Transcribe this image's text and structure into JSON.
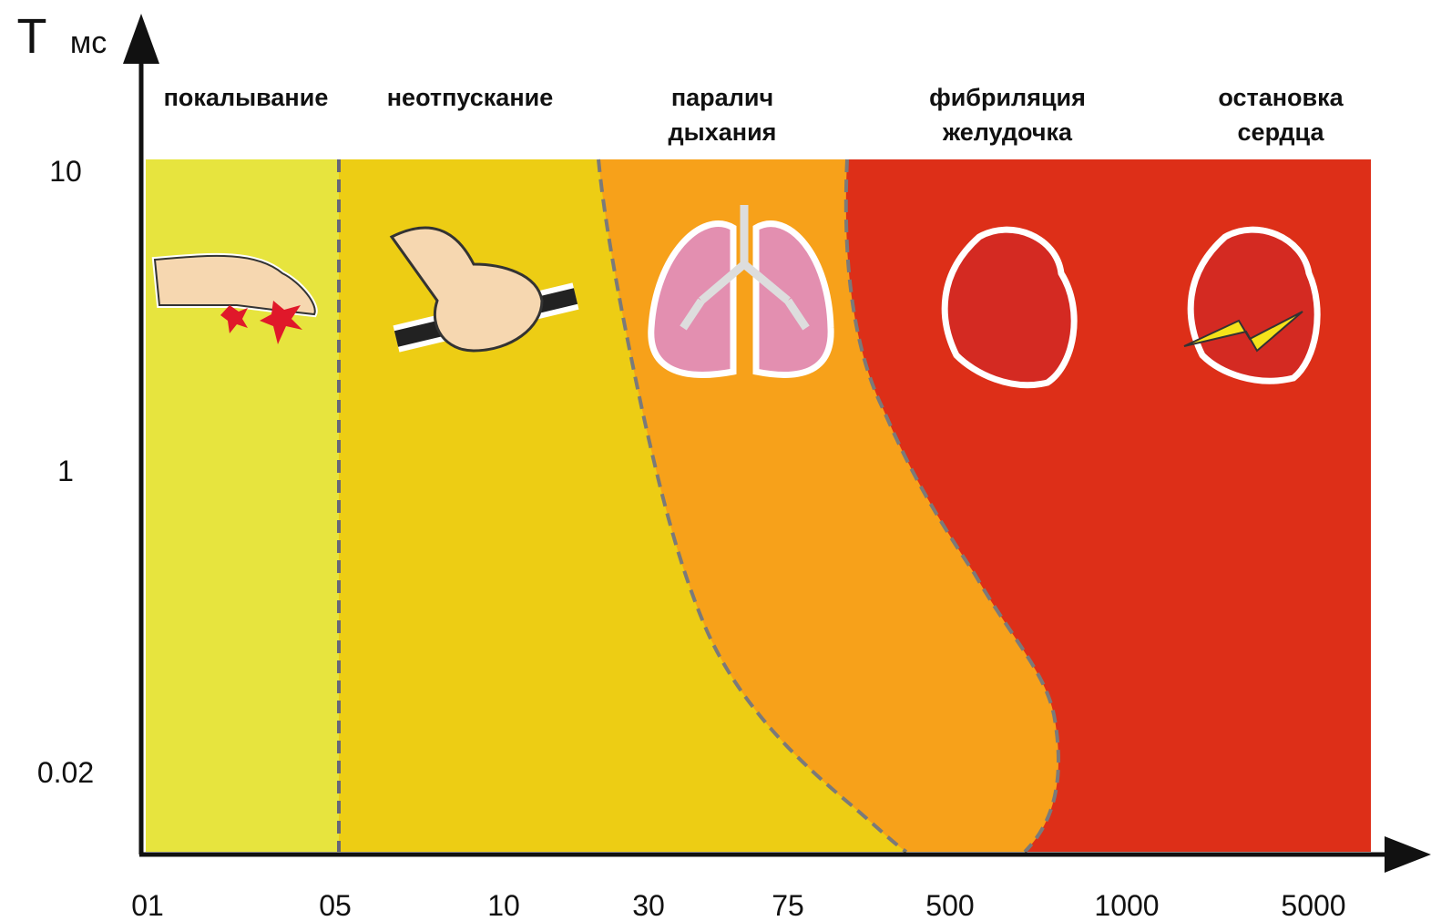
{
  "axis": {
    "y_label": "T",
    "y_unit": "мс",
    "y_ticks": [
      "10",
      "1",
      "0.02"
    ],
    "x_ticks": [
      "01",
      "05",
      "10",
      "30",
      "75",
      "500",
      "1000",
      "5000"
    ]
  },
  "zones": [
    {
      "label": [
        "покалывание"
      ]
    },
    {
      "label": [
        "неотпускание"
      ]
    },
    {
      "label": [
        "паралич",
        "дыхания"
      ]
    },
    {
      "label": [
        "фибриляция",
        "желудочка"
      ]
    },
    {
      "label": [
        "остановка",
        "сердца"
      ]
    }
  ]
}
